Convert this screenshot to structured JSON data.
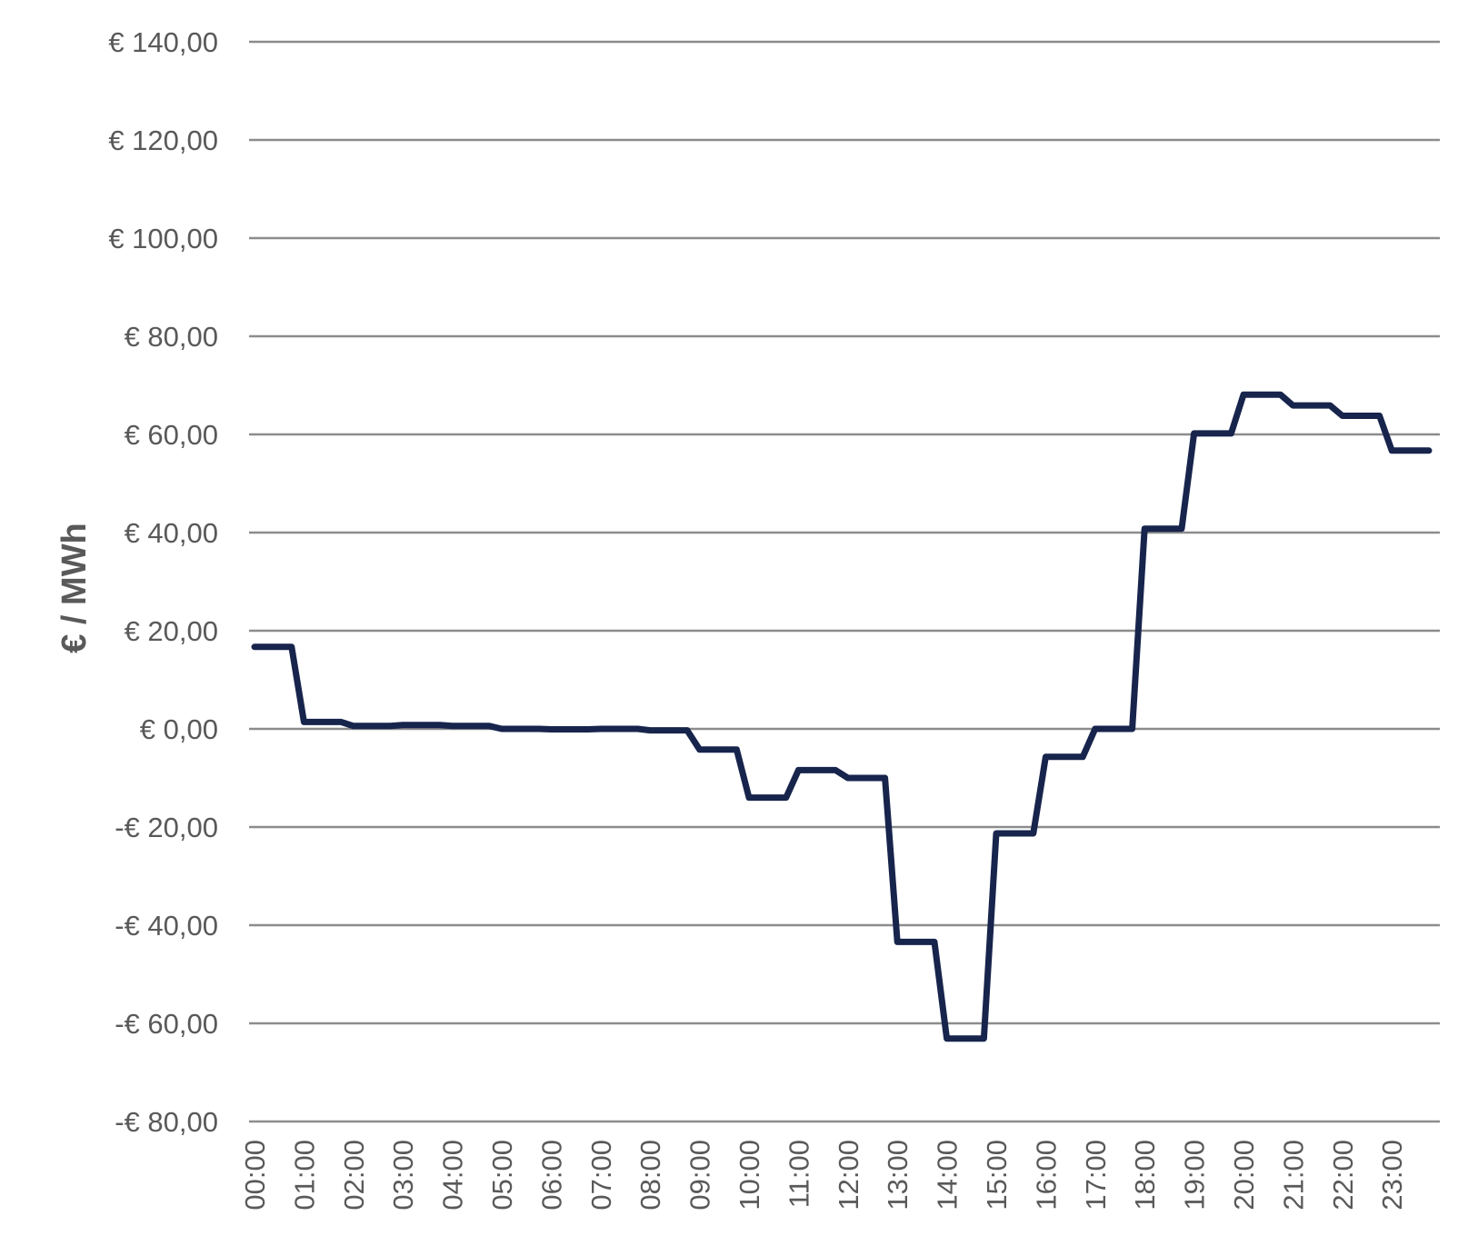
{
  "chart_data": {
    "type": "line",
    "ylabel": "€ / MWh",
    "xlabel": "",
    "ylim": [
      -80,
      140
    ],
    "y_ticks": [
      {
        "value": 140,
        "label": "€ 140,00"
      },
      {
        "value": 120,
        "label": "€ 120,00"
      },
      {
        "value": 100,
        "label": "€ 100,00"
      },
      {
        "value": 80,
        "label": "€ 80,00"
      },
      {
        "value": 60,
        "label": "€ 60,00"
      },
      {
        "value": 40,
        "label": "€ 40,00"
      },
      {
        "value": 20,
        "label": "€ 20,00"
      },
      {
        "value": 0,
        "label": "€ 0,00"
      },
      {
        "value": -20,
        "label": "-€ 20,00"
      },
      {
        "value": -40,
        "label": "-€ 40,00"
      },
      {
        "value": -60,
        "label": "-€ 60,00"
      },
      {
        "value": -80,
        "label": "-€ 80,00"
      }
    ],
    "x_ticks": [
      "00:00",
      "01:00",
      "02:00",
      "03:00",
      "04:00",
      "05:00",
      "06:00",
      "07:00",
      "08:00",
      "09:00",
      "10:00",
      "11:00",
      "12:00",
      "13:00",
      "14:00",
      "15:00",
      "16:00",
      "17:00",
      "18:00",
      "19:00",
      "20:00",
      "21:00",
      "22:00",
      "23:00"
    ],
    "grid": true,
    "legend": "none",
    "colors": {
      "line": "#17244c",
      "grid": "#8c8c8c",
      "text": "#595959"
    },
    "series": [
      {
        "x": [
          "00:00",
          "00:15",
          "00:30",
          "00:45",
          "01:00",
          "01:15",
          "01:30",
          "01:45",
          "02:00",
          "02:15",
          "02:30",
          "02:45",
          "03:00",
          "03:15",
          "03:30",
          "03:45",
          "04:00",
          "04:15",
          "04:30",
          "04:45",
          "05:00",
          "05:15",
          "05:30",
          "05:45",
          "06:00",
          "06:15",
          "06:30",
          "06:45",
          "07:00",
          "07:15",
          "07:30",
          "07:45",
          "08:00",
          "08:15",
          "08:30",
          "08:45",
          "09:00",
          "09:15",
          "09:30",
          "09:45",
          "10:00",
          "10:15",
          "10:30",
          "10:45",
          "11:00",
          "11:15",
          "11:30",
          "11:45",
          "12:00",
          "12:15",
          "12:30",
          "12:45",
          "13:00",
          "13:15",
          "13:30",
          "13:45",
          "14:00",
          "14:15",
          "14:30",
          "14:45",
          "15:00",
          "15:15",
          "15:30",
          "15:45",
          "16:00",
          "16:15",
          "16:30",
          "16:45",
          "17:00",
          "17:15",
          "17:30",
          "17:45",
          "18:00",
          "18:15",
          "18:30",
          "18:45",
          "19:00",
          "19:15",
          "19:30",
          "19:45",
          "20:00",
          "20:15",
          "20:30",
          "20:45",
          "21:00",
          "21:15",
          "21:30",
          "21:45",
          "22:00",
          "22:15",
          "22:30",
          "22:45",
          "23:00",
          "23:15",
          "23:30",
          "23:45"
        ],
        "values": [
          16.7,
          16.7,
          16.7,
          16.7,
          1.4,
          1.4,
          1.4,
          1.4,
          0.6,
          0.6,
          0.6,
          0.6,
          0.8,
          0.8,
          0.8,
          0.8,
          0.6,
          0.6,
          0.6,
          0.6,
          0.0,
          0.0,
          0.0,
          0.0,
          -0.1,
          -0.1,
          -0.1,
          -0.1,
          0.0,
          0.0,
          0.0,
          0.0,
          -0.3,
          -0.3,
          -0.3,
          -0.3,
          -4.2,
          -4.2,
          -4.2,
          -4.2,
          -14.0,
          -14.0,
          -14.0,
          -14.0,
          -8.4,
          -8.4,
          -8.4,
          -8.4,
          -10.0,
          -10.0,
          -10.0,
          -10.0,
          -43.4,
          -43.4,
          -43.4,
          -43.4,
          -63.1,
          -63.1,
          -63.1,
          -63.1,
          -21.3,
          -21.3,
          -21.3,
          -21.3,
          -5.7,
          -5.7,
          -5.7,
          -5.7,
          0.0,
          0.0,
          0.0,
          0.0,
          40.8,
          40.8,
          40.8,
          40.8,
          60.2,
          60.2,
          60.2,
          60.2,
          68.1,
          68.1,
          68.1,
          68.1,
          65.9,
          65.9,
          65.9,
          65.9,
          63.8,
          63.8,
          63.8,
          63.8,
          56.7,
          56.7,
          56.7,
          56.7
        ]
      }
    ]
  }
}
